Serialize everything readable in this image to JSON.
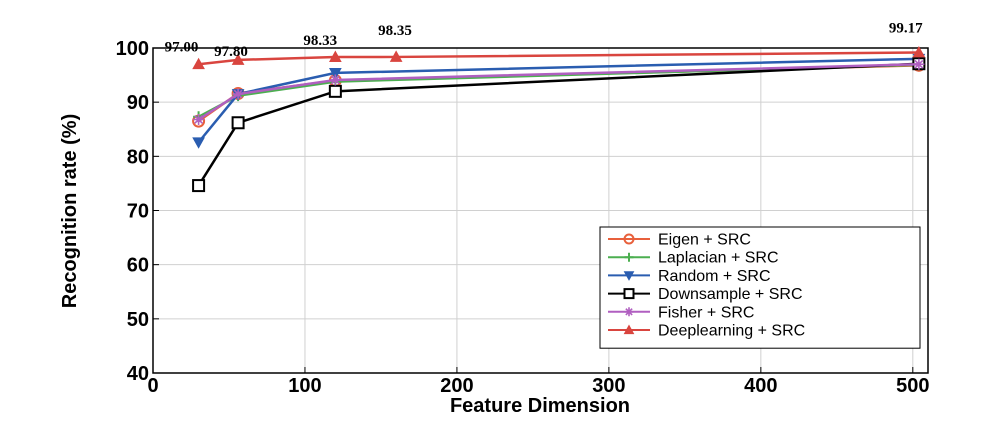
{
  "chart_data": {
    "type": "line",
    "xlabel": "Feature Dimension",
    "ylabel": "Recognition rate (%)",
    "xlim": [
      0,
      510
    ],
    "ylim": [
      40,
      100
    ],
    "xticks": [
      0,
      100,
      200,
      300,
      400,
      500
    ],
    "yticks": [
      40,
      50,
      60,
      70,
      80,
      90,
      100
    ],
    "grid": true,
    "legend_position": "bottom-right",
    "series": [
      {
        "name": "Eigen + SRC",
        "color": "#e8603c",
        "marker": "circle",
        "x": [
          30,
          56,
          120,
          504
        ],
        "y": [
          86.5,
          91.6,
          94.0,
          96.8
        ]
      },
      {
        "name": "Laplacian + SRC",
        "color": "#4caf50",
        "marker": "plus",
        "x": [
          30,
          56,
          120,
          504
        ],
        "y": [
          87.3,
          91.2,
          93.8,
          96.9
        ]
      },
      {
        "name": "Random + SRC",
        "color": "#2a5db0",
        "marker": "triangle-down",
        "x": [
          30,
          56,
          120,
          504
        ],
        "y": [
          82.6,
          91.5,
          95.4,
          98.0
        ]
      },
      {
        "name": "Downsample + SRC",
        "color": "#000000",
        "marker": "square",
        "x": [
          30,
          56,
          120,
          504
        ],
        "y": [
          74.6,
          86.2,
          92.0,
          97.1
        ]
      },
      {
        "name": "Fisher + SRC",
        "color": "#b05fc0",
        "marker": "star",
        "x": [
          30,
          56,
          120,
          504
        ],
        "y": [
          86.8,
          91.5,
          94.1,
          97.0
        ]
      },
      {
        "name": "Deeplearning + SRC",
        "color": "#d9453f",
        "marker": "triangle-up",
        "x": [
          30,
          56,
          120,
          160,
          504
        ],
        "y": [
          97.0,
          97.8,
          98.33,
          98.35,
          99.17
        ]
      }
    ],
    "annotations": [
      {
        "text": "97.00",
        "x": 30,
        "y": 97.0
      },
      {
        "text": "97.80",
        "x": 56,
        "y": 97.8
      },
      {
        "text": "98.33",
        "x": 120,
        "y": 98.33
      },
      {
        "text": "98.35",
        "x": 160,
        "y": 98.35
      },
      {
        "text": "99.17",
        "x": 504,
        "y": 99.17
      }
    ]
  }
}
